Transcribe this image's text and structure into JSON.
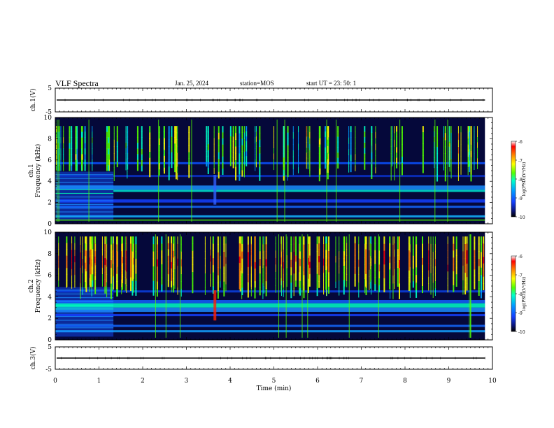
{
  "header": {
    "title": "VLF Spectra",
    "date": "Jan. 25, 2024",
    "station": "station=MOS",
    "start": "start UT =  23: 50: 1"
  },
  "chart_data": {
    "type": "heatmap",
    "xlabel": "Time (min)",
    "xlim": [
      0,
      10
    ],
    "xticks": [
      "0",
      "1",
      "2",
      "3",
      "4",
      "5",
      "6",
      "7",
      "8",
      "9",
      "10"
    ],
    "panels": [
      {
        "id": "ch1-voltage",
        "type": "line",
        "ylabel": "ch.1(V)",
        "ylim": [
          -5,
          5
        ],
        "yticks": [
          "5",
          "-5"
        ],
        "trace_value": 0
      },
      {
        "id": "ch1-spectrogram",
        "type": "heatmap",
        "ylabel_top": "ch.1",
        "ylabel": "Frequency (kHz)",
        "ylim": [
          0,
          10
        ],
        "yticks": [
          "0",
          "2",
          "4",
          "6",
          "8",
          "10"
        ],
        "colorbar": {
          "label": "log(PSD)(V²/Hz)",
          "range": [
            -10,
            -6
          ],
          "ticks": [
            "-6",
            "-7",
            "-8",
            "-9",
            "-10"
          ]
        }
      },
      {
        "id": "ch2-spectrogram",
        "type": "heatmap",
        "ylabel_top": "ch.2",
        "ylabel": "Frequency (kHz)",
        "ylim": [
          0,
          10
        ],
        "yticks": [
          "0",
          "2",
          "4",
          "6",
          "8",
          "10"
        ],
        "colorbar": {
          "label": "log(PSD)(V²/Hz)",
          "range": [
            -10,
            -6
          ],
          "ticks": [
            "-6",
            "-7",
            "-8",
            "-9",
            "-10"
          ]
        }
      },
      {
        "id": "ch3-voltage",
        "type": "line",
        "ylabel": "ch.3(V)",
        "ylim": [
          -5,
          5
        ],
        "yticks": [
          "5",
          "-5"
        ],
        "trace_value": 0
      }
    ],
    "colormap": [
      "#000000",
      "#0a1478",
      "#1440ff",
      "#00a0ff",
      "#00ffc8",
      "#50ff00",
      "#ffff00",
      "#ff8000",
      "#ff0000",
      "#ffffff"
    ]
  }
}
